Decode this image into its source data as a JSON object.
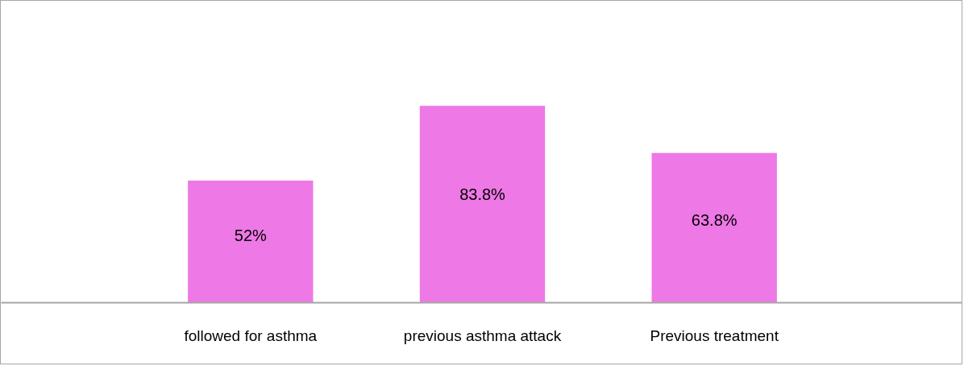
{
  "chart_data": {
    "type": "bar",
    "categories": [
      "followed for asthma",
      "previous asthma attack",
      "Previous treatment"
    ],
    "values": [
      52,
      83.8,
      63.8
    ],
    "color": "#ee78e6",
    "value_labels": [
      "52%",
      "83.8%",
      "63.8%"
    ]
  }
}
